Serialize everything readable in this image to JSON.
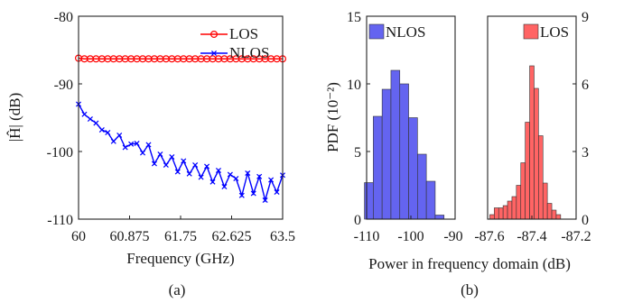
{
  "chart_data": [
    {
      "type": "line",
      "caption": "(a)",
      "xlabel": "Frequency (GHz)",
      "ylabel": "|Ĥ| (dB)",
      "xlim": [
        60,
        63.5
      ],
      "ylim": [
        -110,
        -80
      ],
      "xticks": [
        "60",
        "60.875",
        "61.75",
        "62.625",
        "63.5"
      ],
      "yticks": [
        "-80",
        "-90",
        "-100",
        "-110"
      ],
      "legend_position": "top-right",
      "series": [
        {
          "name": "LOS",
          "color": "#ff0000",
          "marker": "circle",
          "x": [
            60.0,
            60.1,
            60.2,
            60.3,
            60.4,
            60.5,
            60.6,
            60.7,
            60.8,
            60.9,
            61.0,
            61.1,
            61.2,
            61.3,
            61.4,
            61.5,
            61.6,
            61.7,
            61.8,
            61.9,
            62.0,
            62.1,
            62.2,
            62.3,
            62.4,
            62.5,
            62.6,
            62.7,
            62.8,
            62.9,
            63.0,
            63.1,
            63.2,
            63.3,
            63.4,
            63.5
          ],
          "y": [
            -86.2,
            -86.3,
            -86.3,
            -86.3,
            -86.3,
            -86.3,
            -86.3,
            -86.3,
            -86.3,
            -86.3,
            -86.3,
            -86.3,
            -86.3,
            -86.3,
            -86.3,
            -86.3,
            -86.3,
            -86.3,
            -86.3,
            -86.3,
            -86.3,
            -86.3,
            -86.3,
            -86.3,
            -86.3,
            -86.3,
            -86.3,
            -86.3,
            -86.3,
            -86.3,
            -86.3,
            -86.3,
            -86.3,
            -86.3,
            -86.3,
            -86.3
          ]
        },
        {
          "name": "NLOS",
          "color": "#0000ff",
          "marker": "x",
          "x": [
            60.0,
            60.1,
            60.2,
            60.3,
            60.4,
            60.5,
            60.6,
            60.7,
            60.8,
            60.9,
            61.0,
            61.1,
            61.2,
            61.3,
            61.4,
            61.5,
            61.6,
            61.7,
            61.8,
            61.9,
            62.0,
            62.1,
            62.2,
            62.3,
            62.4,
            62.5,
            62.6,
            62.7,
            62.8,
            62.9,
            63.0,
            63.1,
            63.2,
            63.3,
            63.4,
            63.5
          ],
          "y": [
            -93.0,
            -94.5,
            -95.2,
            -95.8,
            -96.8,
            -97.2,
            -98.5,
            -97.6,
            -99.4,
            -98.9,
            -98.8,
            -100.2,
            -99.0,
            -101.8,
            -100.4,
            -102.0,
            -100.8,
            -103.0,
            -101.4,
            -103.3,
            -102.0,
            -103.8,
            -102.2,
            -104.5,
            -102.8,
            -105.2,
            -103.4,
            -104.0,
            -106.5,
            -103.2,
            -106.2,
            -103.7,
            -107.2,
            -104.2,
            -106.0,
            -103.5
          ]
        }
      ]
    },
    {
      "type": "bar",
      "caption": "(b)",
      "xlabel": "Power in frequency domain (dB)",
      "ylabel": "PDF (10⁻²)",
      "panels": [
        {
          "name": "NLOS",
          "color": "#6464f0",
          "xlim": [
            -110,
            -90
          ],
          "ylim": [
            0,
            15
          ],
          "xticks": [
            "-110",
            "-100",
            "-90"
          ],
          "yticks": [
            "0",
            "5",
            "10",
            "15"
          ],
          "legend_position": "top-left",
          "bins": [
            -109.5,
            -107.5,
            -105.5,
            -103.5,
            -101.5,
            -99.5,
            -97.5,
            -95.5,
            -93.5,
            -91.5
          ],
          "values": [
            2.7,
            7.6,
            9.6,
            11.0,
            10.0,
            7.5,
            4.8,
            2.8,
            0.3,
            0
          ]
        },
        {
          "name": "LOS",
          "color": "#ff6464",
          "xlim": [
            -87.6,
            -87.2
          ],
          "ylim": [
            0,
            9
          ],
          "xticks": [
            "-87.6",
            "-87.4",
            "-87.2"
          ],
          "yticks": [
            "0",
            "3",
            "6",
            "9"
          ],
          "legend_position": "top-right",
          "bins": [
            -87.58,
            -87.56,
            -87.54,
            -87.52,
            -87.5,
            -87.48,
            -87.46,
            -87.44,
            -87.42,
            -87.4,
            -87.38,
            -87.36,
            -87.34,
            -87.32,
            -87.3,
            -87.28
          ],
          "values": [
            0.2,
            0.5,
            0.5,
            0.6,
            0.8,
            1.0,
            1.5,
            2.5,
            4.3,
            6.8,
            5.8,
            3.7,
            1.6,
            0.7,
            0.4,
            0.2
          ]
        }
      ]
    }
  ]
}
